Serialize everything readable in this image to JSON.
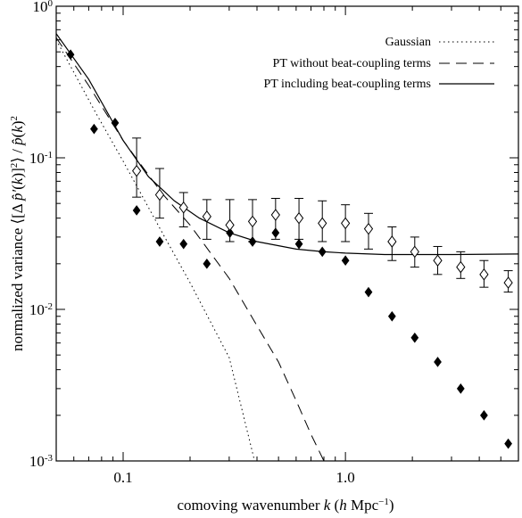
{
  "chart_data": {
    "type": "scatter",
    "xlabel": "comoving wavenumber  k  (h Mpc⁻¹)",
    "ylabel": "normalized variance  ⟨[Δ p̂′(k)]²⟩ / p̂(k)²",
    "xscale": "log",
    "yscale": "log",
    "xlim": [
      0.05,
      6.0
    ],
    "ylim": [
      0.001,
      1.0
    ],
    "x_ticklabels": [
      "0.1",
      "1.0"
    ],
    "x_ticks": [
      0.1,
      1.0
    ],
    "y_ticks": [
      {
        "value": 1.0,
        "mantissa": "10",
        "exponent": "0"
      },
      {
        "value": 0.1,
        "mantissa": "10",
        "exponent": "-1"
      },
      {
        "value": 0.01,
        "mantissa": "10",
        "exponent": "-2"
      },
      {
        "value": 0.001,
        "mantissa": "10",
        "exponent": "-3"
      }
    ],
    "legend_position": "top-right",
    "series": [
      {
        "name": "Gaussian",
        "kind": "line",
        "style": "dotted",
        "x": [
          0.05,
          0.075,
          0.1,
          0.15,
          0.2,
          0.3,
          0.39
        ],
        "y": [
          0.6,
          0.2,
          0.095,
          0.032,
          0.015,
          0.0048,
          0.001
        ]
      },
      {
        "name": "PT without beat-coupling terms",
        "kind": "line",
        "style": "dashed",
        "x": [
          0.05,
          0.07,
          0.1,
          0.15,
          0.2,
          0.3,
          0.4,
          0.5,
          0.6,
          0.7,
          0.8
        ],
        "y": [
          0.62,
          0.3,
          0.13,
          0.058,
          0.036,
          0.016,
          0.0078,
          0.0045,
          0.0025,
          0.0015,
          0.001
        ]
      },
      {
        "name": "PT including beat-coupling terms",
        "kind": "line",
        "style": "solid",
        "x": [
          0.05,
          0.07,
          0.1,
          0.13,
          0.17,
          0.22,
          0.3,
          0.4,
          0.6,
          0.8,
          1.0,
          1.5,
          2.0,
          3.0,
          6.0
        ],
        "y": [
          0.66,
          0.33,
          0.13,
          0.075,
          0.052,
          0.04,
          0.032,
          0.028,
          0.025,
          0.024,
          0.0235,
          0.023,
          0.023,
          0.023,
          0.0232
        ]
      },
      {
        "kind": "markers",
        "marker": "filled-diamond",
        "x": [
          0.058,
          0.074,
          0.092,
          0.115,
          0.146,
          0.187,
          0.238,
          0.302,
          0.382,
          0.485,
          0.618,
          0.787,
          1.0,
          1.27,
          1.62,
          2.05,
          2.6,
          3.3,
          4.2,
          5.4
        ],
        "y": [
          0.48,
          0.155,
          0.17,
          0.045,
          0.028,
          0.027,
          0.02,
          0.032,
          0.028,
          0.032,
          0.027,
          0.024,
          0.021,
          0.013,
          0.009,
          0.0065,
          0.0045,
          0.003,
          0.002,
          0.0013
        ]
      },
      {
        "kind": "markers",
        "marker": "open-diamond",
        "x": [
          0.115,
          0.146,
          0.187,
          0.238,
          0.302,
          0.382,
          0.485,
          0.618,
          0.787,
          1.0,
          1.27,
          1.62,
          2.05,
          2.6,
          3.3,
          4.2,
          5.4
        ],
        "y": [
          0.082,
          0.057,
          0.047,
          0.041,
          0.036,
          0.038,
          0.042,
          0.04,
          0.037,
          0.037,
          0.034,
          0.028,
          0.024,
          0.021,
          0.019,
          0.017,
          0.015
        ],
        "y_low": [
          0.055,
          0.04,
          0.035,
          0.029,
          0.028,
          0.028,
          0.029,
          0.029,
          0.028,
          0.028,
          0.025,
          0.021,
          0.019,
          0.017,
          0.016,
          0.014,
          0.013
        ],
        "y_high": [
          0.135,
          0.085,
          0.059,
          0.053,
          0.053,
          0.053,
          0.054,
          0.054,
          0.052,
          0.049,
          0.043,
          0.035,
          0.03,
          0.026,
          0.024,
          0.021,
          0.018
        ]
      }
    ]
  }
}
